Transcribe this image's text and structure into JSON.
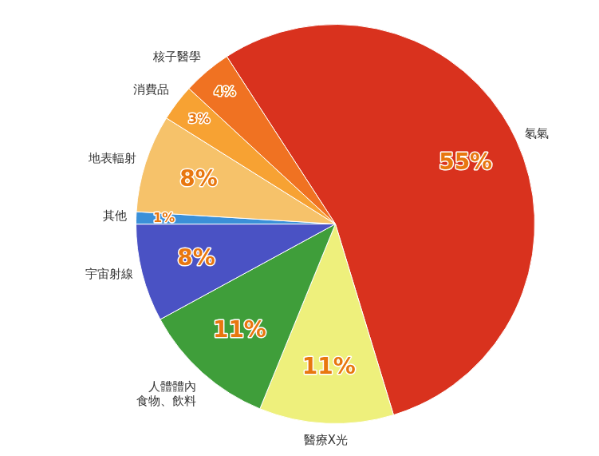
{
  "chart_data": {
    "type": "pie",
    "categories": [
      "氡氣",
      "醫療X光",
      "人體體內\n食物、飲料",
      "宇宙射線",
      "其他",
      "地表輻射",
      "消費品",
      "核子醫學"
    ],
    "values": [
      55,
      11,
      11,
      8,
      1,
      8,
      3,
      4
    ],
    "value_labels": [
      "55%",
      "11%",
      "11%",
      "8%",
      "1%",
      "8%",
      "3%",
      "4%"
    ],
    "colors": [
      "#d9321e",
      "#eef07c",
      "#3f9e3a",
      "#4a52c4",
      "#3b90d8",
      "#f6c26a",
      "#f7a233",
      "#f07222"
    ],
    "data_labels": true
  }
}
